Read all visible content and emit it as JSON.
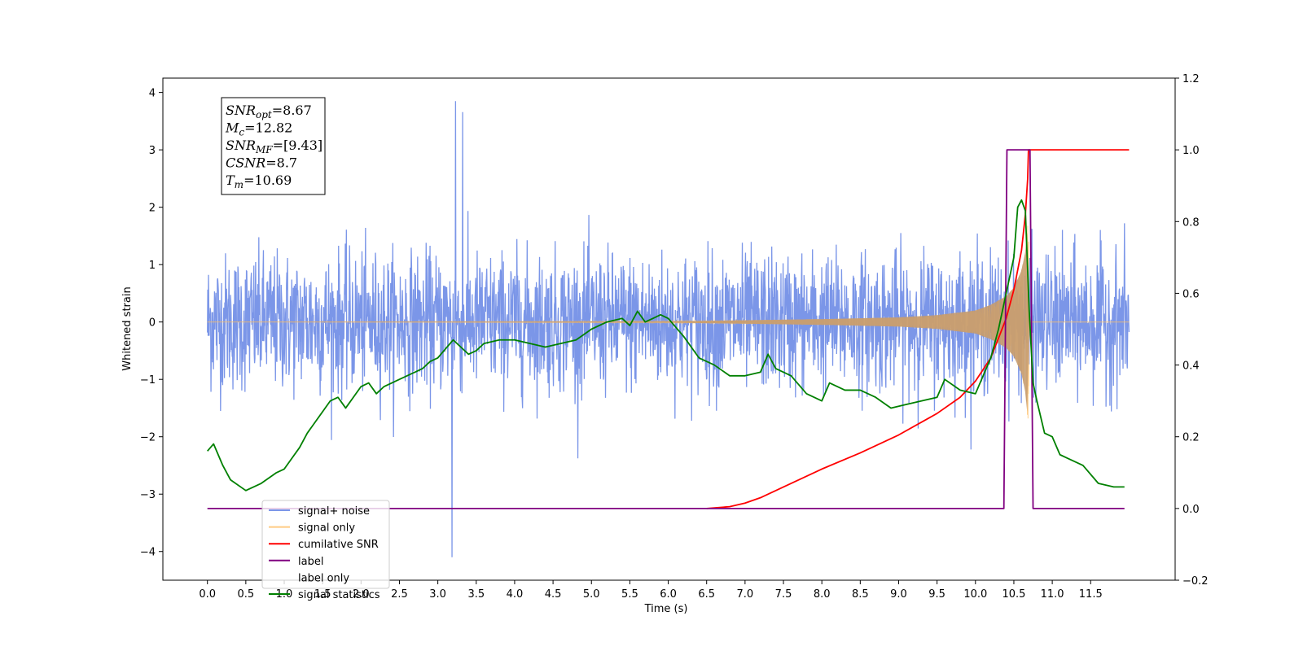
{
  "chart_data": {
    "type": "line",
    "xlabel": "Time (s)",
    "ylabel": "Whitened strain",
    "xlim": [
      -0.58,
      12.6
    ],
    "ylim": [
      -4.5,
      4.25
    ],
    "y2lim": [
      -0.2,
      1.2
    ],
    "x_ticks": [
      "0.0",
      "0.5",
      "1.0",
      "1.5",
      "2.0",
      "2.5",
      "3.0",
      "3.5",
      "4.0",
      "4.5",
      "5.0",
      "5.5",
      "6.0",
      "6.5",
      "7.0",
      "7.5",
      "8.0",
      "8.5",
      "9.0",
      "9.5",
      "10.0",
      "10.5",
      "11.0",
      "11.5"
    ],
    "y_ticks": [
      "4",
      "3",
      "2",
      "1",
      "0",
      "−1",
      "−2",
      "−3",
      "−4"
    ],
    "y2_ticks": [
      "1.2",
      "1.0",
      "0.8",
      "0.6",
      "0.4",
      "0.2",
      "0.0",
      "−0.2"
    ],
    "legend_position": "lower-left",
    "annotations": [
      {
        "sym": "SNR",
        "sub": "opt",
        "val": "=8.67"
      },
      {
        "sym": "M",
        "sub": "c",
        "val": "=12.82"
      },
      {
        "sym": "SNR",
        "sub": "MF",
        "val": "=[9.43]"
      },
      {
        "sym": "CSNR",
        "sub": "",
        "val": "=8.7"
      },
      {
        "sym": "T",
        "sub": "m",
        "val": "=10.69"
      }
    ],
    "series": [
      {
        "name": "signal+ noise",
        "color": "#7b96e8",
        "axis": "left",
        "kind": "noise",
        "x_range": [
          0.0,
          12.0
        ],
        "typical_range": [
          -1.3,
          1.3
        ],
        "max": 3.85,
        "min": -4.1
      },
      {
        "name": "signal only",
        "color": "#ffbf66",
        "axis": "left",
        "kind": "chirp",
        "x_range": [
          0.0,
          12.0
        ],
        "amplitude": {
          "x": [
            0.0,
            6.0,
            7.0,
            8.0,
            9.0,
            9.5,
            10.0,
            10.2,
            10.4,
            10.5,
            10.6,
            10.66,
            10.69,
            10.7
          ],
          "y": [
            0.0,
            0.01,
            0.03,
            0.05,
            0.08,
            0.12,
            0.2,
            0.3,
            0.45,
            0.6,
            0.9,
            1.3,
            1.9,
            0.0
          ]
        }
      },
      {
        "name": "cumilative SNR",
        "color": "#ff0000",
        "axis": "right",
        "x": [
          6.5,
          6.8,
          7.0,
          7.2,
          7.5,
          8.0,
          8.5,
          9.0,
          9.5,
          9.8,
          10.0,
          10.2,
          10.4,
          10.5,
          10.6,
          10.65,
          10.68,
          10.69,
          12.0
        ],
        "y": [
          0.0,
          0.005,
          0.015,
          0.03,
          0.06,
          0.11,
          0.155,
          0.205,
          0.265,
          0.31,
          0.355,
          0.42,
          0.53,
          0.61,
          0.72,
          0.82,
          0.92,
          1.0,
          1.0
        ]
      },
      {
        "name": "label",
        "color": "#800080",
        "axis": "right",
        "x": [
          0.0,
          10.37,
          10.41,
          10.71,
          10.75,
          11.94
        ],
        "y": [
          0.0,
          0.0,
          1.0,
          1.0,
          0.0,
          0.0
        ]
      },
      {
        "name": "label only",
        "color": "#ffffff",
        "axis": "right",
        "x": [],
        "y": []
      },
      {
        "name": "signal statistics",
        "color": "#008000",
        "axis": "right",
        "x": [
          0.0,
          0.08,
          0.2,
          0.3,
          0.5,
          0.7,
          0.9,
          1.0,
          1.1,
          1.2,
          1.3,
          1.5,
          1.6,
          1.7,
          1.8,
          1.9,
          2.0,
          2.1,
          2.2,
          2.3,
          2.5,
          2.7,
          2.8,
          2.9,
          3.0,
          3.2,
          3.4,
          3.5,
          3.6,
          3.8,
          4.0,
          4.2,
          4.4,
          4.6,
          4.8,
          5.0,
          5.2,
          5.4,
          5.5,
          5.6,
          5.7,
          5.8,
          5.9,
          6.0,
          6.2,
          6.4,
          6.6,
          6.8,
          7.0,
          7.2,
          7.3,
          7.4,
          7.6,
          7.8,
          8.0,
          8.1,
          8.3,
          8.5,
          8.7,
          8.9,
          9.1,
          9.3,
          9.5,
          9.6,
          9.8,
          10.0,
          10.2,
          10.3,
          10.4,
          10.5,
          10.55,
          10.6,
          10.65,
          10.7,
          10.75,
          10.8,
          10.9,
          11.0,
          11.1,
          11.2,
          11.4,
          11.6,
          11.8,
          11.94
        ],
        "y": [
          0.16,
          0.18,
          0.12,
          0.08,
          0.05,
          0.07,
          0.1,
          0.11,
          0.14,
          0.17,
          0.21,
          0.27,
          0.3,
          0.31,
          0.28,
          0.31,
          0.34,
          0.35,
          0.32,
          0.34,
          0.36,
          0.38,
          0.39,
          0.41,
          0.42,
          0.47,
          0.43,
          0.44,
          0.46,
          0.47,
          0.47,
          0.46,
          0.45,
          0.46,
          0.47,
          0.5,
          0.52,
          0.53,
          0.51,
          0.55,
          0.52,
          0.53,
          0.54,
          0.53,
          0.48,
          0.42,
          0.4,
          0.37,
          0.37,
          0.38,
          0.43,
          0.39,
          0.37,
          0.32,
          0.3,
          0.35,
          0.33,
          0.33,
          0.31,
          0.28,
          0.29,
          0.3,
          0.31,
          0.36,
          0.33,
          0.32,
          0.42,
          0.5,
          0.6,
          0.7,
          0.84,
          0.86,
          0.83,
          0.55,
          0.35,
          0.3,
          0.21,
          0.2,
          0.15,
          0.14,
          0.12,
          0.07,
          0.06,
          0.06
        ]
      }
    ]
  }
}
